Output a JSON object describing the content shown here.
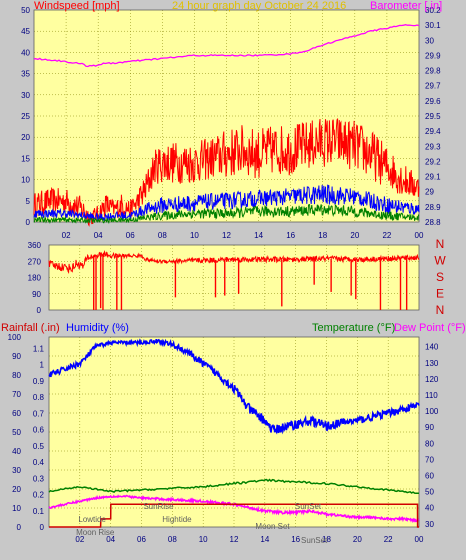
{
  "header": {
    "wind_label": "Windspeed [mph]",
    "title": "24 hour graph day   October 24 2016",
    "baro_label": "Barometer [.in]"
  },
  "colors": {
    "background": "#c8c8c8",
    "plot_bg": "#ffffa0",
    "grid": "#808000",
    "wind_gust": "#ff0000",
    "wind_avg": "#0000ff",
    "wind_low": "#008000",
    "barometer": "#ff00ff",
    "direction": "#ff0000",
    "humidity": "#0000ff",
    "temperature": "#008000",
    "dewpoint": "#ff00ff",
    "rainfall": "#d00000",
    "title_text": "#e0c000"
  },
  "chart_data": [
    {
      "type": "line",
      "title": "24 hour graph day   October 24 2016",
      "ylabel": "Windspeed [mph]",
      "y2label": "Barometer [.in]",
      "x_ticks": [
        "02",
        "04",
        "06",
        "08",
        "10",
        "12",
        "14",
        "16",
        "18",
        "20",
        "22",
        "00"
      ],
      "xlim": [
        0,
        24
      ],
      "ylim": [
        0,
        50
      ],
      "y2lim": [
        28.8,
        30.2
      ],
      "y_ticks": [
        "0",
        "5",
        "10",
        "15",
        "20",
        "25",
        "30",
        "35",
        "40",
        "45",
        "50"
      ],
      "y2_ticks": [
        "28.8",
        "28.9",
        "29",
        "29.1",
        "29.2",
        "29.3",
        "29.4",
        "29.5",
        "29.6",
        "29.7",
        "29.8",
        "29.9",
        "30",
        "30.1",
        "30.2"
      ],
      "grid": true,
      "series": [
        {
          "role": "wind-gust",
          "axis": "left",
          "style": "noisy",
          "x": [
            0,
            1,
            2,
            3,
            3.5,
            4,
            4.5,
            5,
            5.5,
            6,
            6.5,
            7,
            7.5,
            8,
            9,
            10,
            11,
            12,
            13,
            14,
            15,
            16,
            17,
            18,
            19,
            20,
            21,
            22,
            23,
            24
          ],
          "y": [
            4,
            5,
            5,
            3,
            1,
            2,
            4,
            3,
            4,
            3,
            5,
            8,
            13,
            14,
            14,
            14,
            15,
            16,
            17,
            16,
            17,
            17,
            18,
            19,
            19,
            18,
            16,
            13,
            10,
            8
          ],
          "jitter": [
            3,
            3,
            3,
            3,
            2,
            2,
            3,
            2,
            3,
            2,
            3,
            4,
            4,
            5,
            5,
            5,
            5,
            6,
            6,
            6,
            6,
            6,
            6,
            6,
            6,
            6,
            6,
            5,
            4,
            3
          ]
        },
        {
          "role": "wind-average",
          "axis": "left",
          "style": "noisy",
          "x": [
            0,
            2,
            3,
            4,
            5,
            6,
            7,
            8,
            10,
            12,
            14,
            16,
            18,
            20,
            22,
            24
          ],
          "y": [
            2,
            2,
            1.5,
            1,
            1.5,
            1.5,
            3,
            4,
            4.5,
            5,
            5.5,
            6,
            6.5,
            6,
            4,
            3
          ],
          "jitter": [
            1,
            1,
            1,
            1,
            1,
            1,
            1.5,
            2,
            2,
            2,
            2,
            2,
            2.5,
            2,
            2,
            1.5
          ]
        },
        {
          "role": "wind-low",
          "axis": "left",
          "style": "noisy",
          "x": [
            0,
            2,
            4,
            6,
            7,
            8,
            10,
            12,
            14,
            16,
            18,
            20,
            22,
            24
          ],
          "y": [
            0.5,
            0.5,
            0.3,
            0.5,
            1,
            1.5,
            2,
            2,
            2.5,
            2.5,
            3,
            2.5,
            1.5,
            1
          ],
          "jitter": [
            0.6,
            0.6,
            0.5,
            0.6,
            0.8,
            1,
            1.2,
            1.2,
            1.3,
            1.3,
            1.4,
            1.3,
            1,
            0.8
          ]
        },
        {
          "role": "barometer",
          "axis": "right",
          "style": "smooth",
          "x": [
            0,
            1,
            2,
            3,
            3.5,
            4,
            5,
            6,
            7,
            8,
            9,
            10,
            12,
            14,
            16,
            17,
            18,
            19,
            20,
            21,
            22,
            23,
            24
          ],
          "y": [
            29.88,
            29.87,
            29.86,
            29.84,
            29.83,
            29.84,
            29.85,
            29.86,
            29.87,
            29.88,
            29.89,
            29.9,
            29.9,
            29.9,
            29.91,
            29.93,
            29.97,
            30.0,
            30.03,
            30.06,
            30.08,
            30.1,
            30.1
          ],
          "jitter": [
            0.005,
            0.005,
            0.005,
            0.008,
            0.008,
            0.008,
            0.005,
            0.005,
            0.005,
            0.005,
            0.005,
            0.005,
            0.004,
            0.004,
            0.004,
            0.004,
            0.004,
            0.004,
            0.004,
            0.004,
            0.004,
            0.004,
            0.004
          ]
        }
      ]
    },
    {
      "type": "line",
      "ylabel": "Wind direction",
      "right_letters": [
        "N",
        "W",
        "S",
        "E",
        "N"
      ],
      "xlim": [
        0,
        24
      ],
      "ylim": [
        0,
        360
      ],
      "y_ticks": [
        "0",
        "90",
        "180",
        "270",
        "360"
      ],
      "grid": true,
      "series": [
        {
          "role": "wind-direction",
          "axis": "left",
          "style": "noisy",
          "x": [
            0,
            1.5,
            1.8,
            2.2,
            2.5,
            3,
            3.5,
            4,
            5,
            6,
            6.3,
            7,
            8,
            10,
            12,
            14,
            16,
            18,
            20,
            22,
            24
          ],
          "y": [
            250,
            230,
            260,
            240,
            290,
            300,
            310,
            300,
            300,
            300,
            280,
            270,
            270,
            275,
            280,
            280,
            280,
            285,
            280,
            285,
            290
          ],
          "jitter": [
            25,
            25,
            25,
            25,
            20,
            15,
            15,
            15,
            10,
            10,
            10,
            10,
            12,
            15,
            15,
            15,
            15,
            15,
            15,
            15,
            15
          ],
          "dropouts": [
            {
              "x": 2.9,
              "y": 0
            },
            {
              "x": 3.05,
              "y": 0
            },
            {
              "x": 3.35,
              "y": 10
            },
            {
              "x": 3.5,
              "y": 0
            },
            {
              "x": 4.4,
              "y": 0
            },
            {
              "x": 4.7,
              "y": 0
            },
            {
              "x": 8.2,
              "y": 70
            },
            {
              "x": 10.8,
              "y": 70
            },
            {
              "x": 11.4,
              "y": 80
            },
            {
              "x": 12.3,
              "y": 90
            },
            {
              "x": 15.1,
              "y": 20
            },
            {
              "x": 17.2,
              "y": 140
            },
            {
              "x": 18.3,
              "y": 100
            },
            {
              "x": 19.6,
              "y": 80
            },
            {
              "x": 19.9,
              "y": 60
            },
            {
              "x": 21.5,
              "y": 0
            },
            {
              "x": 22.8,
              "y": 0
            },
            {
              "x": 23.2,
              "y": 0
            }
          ]
        }
      ]
    },
    {
      "type": "line",
      "labels": {
        "rainfall": "Rainfall (.in)",
        "humidity": "Humidity (%)",
        "temperature": "Temperature (°F)",
        "dewpoint": "Dew Point (°F)"
      },
      "x_ticks": [
        "02",
        "04",
        "06",
        "08",
        "10",
        "12",
        "14",
        "16",
        "18",
        "20",
        "22",
        "00"
      ],
      "xlim": [
        0,
        24
      ],
      "humidity_ticks": [
        "0",
        "10",
        "20",
        "30",
        "40",
        "50",
        "60",
        "70",
        "80",
        "90",
        "100"
      ],
      "rain_ticks": [
        "0",
        "0.1",
        "0.2",
        "0.3",
        "0.4",
        "0.5",
        "0.6",
        "0.7",
        "0.8",
        "0.9",
        "1",
        "1.1"
      ],
      "temp_ticks": [
        "30",
        "40",
        "50",
        "60",
        "70",
        "80",
        "90",
        "100",
        "110",
        "120",
        "130",
        "140"
      ],
      "ylim_humidity": [
        0,
        100
      ],
      "ylim_rain": [
        0,
        1.17
      ],
      "ylim_temp": [
        28,
        146
      ],
      "grid": true,
      "series": [
        {
          "role": "humidity",
          "axis": "humidity",
          "style": "noisy",
          "x": [
            0,
            1,
            2,
            2.5,
            3,
            4,
            5,
            6,
            7,
            8,
            9,
            10,
            11,
            12,
            13,
            14,
            14.5,
            15,
            16,
            17,
            18,
            19,
            20,
            21,
            22,
            23,
            24
          ],
          "y": [
            80,
            83,
            86,
            90,
            95,
            97,
            97,
            97,
            98,
            96,
            92,
            86,
            80,
            73,
            62,
            56,
            51,
            52,
            54,
            56,
            53,
            55,
            56,
            58,
            60,
            62,
            64
          ],
          "jitter": [
            1.5,
            1.5,
            1.5,
            1.5,
            1,
            1,
            1,
            1,
            1,
            1.5,
            1.5,
            2,
            2,
            2.5,
            2.5,
            2.5,
            2.5,
            2.5,
            2.5,
            2.5,
            2.5,
            2,
            2,
            2,
            2,
            2,
            2
          ]
        },
        {
          "role": "temperature",
          "axis": "temp",
          "style": "smooth",
          "x": [
            0,
            2,
            4,
            6,
            8,
            10,
            12,
            14,
            16,
            18,
            20,
            22,
            24
          ],
          "y": [
            50,
            53,
            50,
            51,
            52,
            53,
            55,
            57,
            56,
            55,
            53,
            51,
            49
          ],
          "jitter": [
            0.5,
            0.5,
            0.5,
            0.5,
            0.5,
            0.5,
            0.6,
            0.6,
            0.6,
            0.5,
            0.5,
            0.5,
            0.5
          ]
        },
        {
          "role": "dewpoint",
          "axis": "temp",
          "style": "noisy",
          "x": [
            0,
            1,
            2,
            3,
            4,
            5,
            6,
            8,
            10,
            12,
            13,
            14,
            15,
            16,
            17,
            18,
            19,
            20,
            21,
            22,
            23,
            24
          ],
          "y": [
            40,
            42,
            44,
            46,
            47,
            47,
            46,
            45,
            44,
            42,
            40,
            38,
            37,
            37,
            38,
            36,
            35,
            34,
            34,
            33,
            33,
            32
          ],
          "jitter": [
            0.6,
            0.6,
            0.6,
            0.6,
            0.6,
            0.6,
            0.6,
            0.7,
            0.7,
            0.8,
            0.8,
            0.8,
            0.8,
            0.8,
            0.8,
            0.8,
            0.7,
            0.7,
            0.7,
            0.7,
            0.7,
            0.7
          ]
        },
        {
          "role": "rainfall",
          "axis": "rain",
          "style": "step",
          "x": [
            0,
            3.35,
            3.36,
            4,
            4.01,
            23.9,
            23.91,
            24
          ],
          "y": [
            0,
            0,
            0.05,
            0.05,
            0.14,
            0.14,
            0,
            0
          ]
        }
      ],
      "annotations": [
        {
          "label": "Lowtide",
          "x": 2.8
        },
        {
          "label": "Moon Rise",
          "x": 3.0
        },
        {
          "label": "SunRise",
          "x": 7.1
        },
        {
          "label": "Hightide",
          "x": 8.3
        },
        {
          "label": "Moon Set",
          "x": 14.5
        },
        {
          "label": "SunSet",
          "x": 16.8
        },
        {
          "label": "SunSet",
          "x": 17.2
        }
      ]
    }
  ]
}
